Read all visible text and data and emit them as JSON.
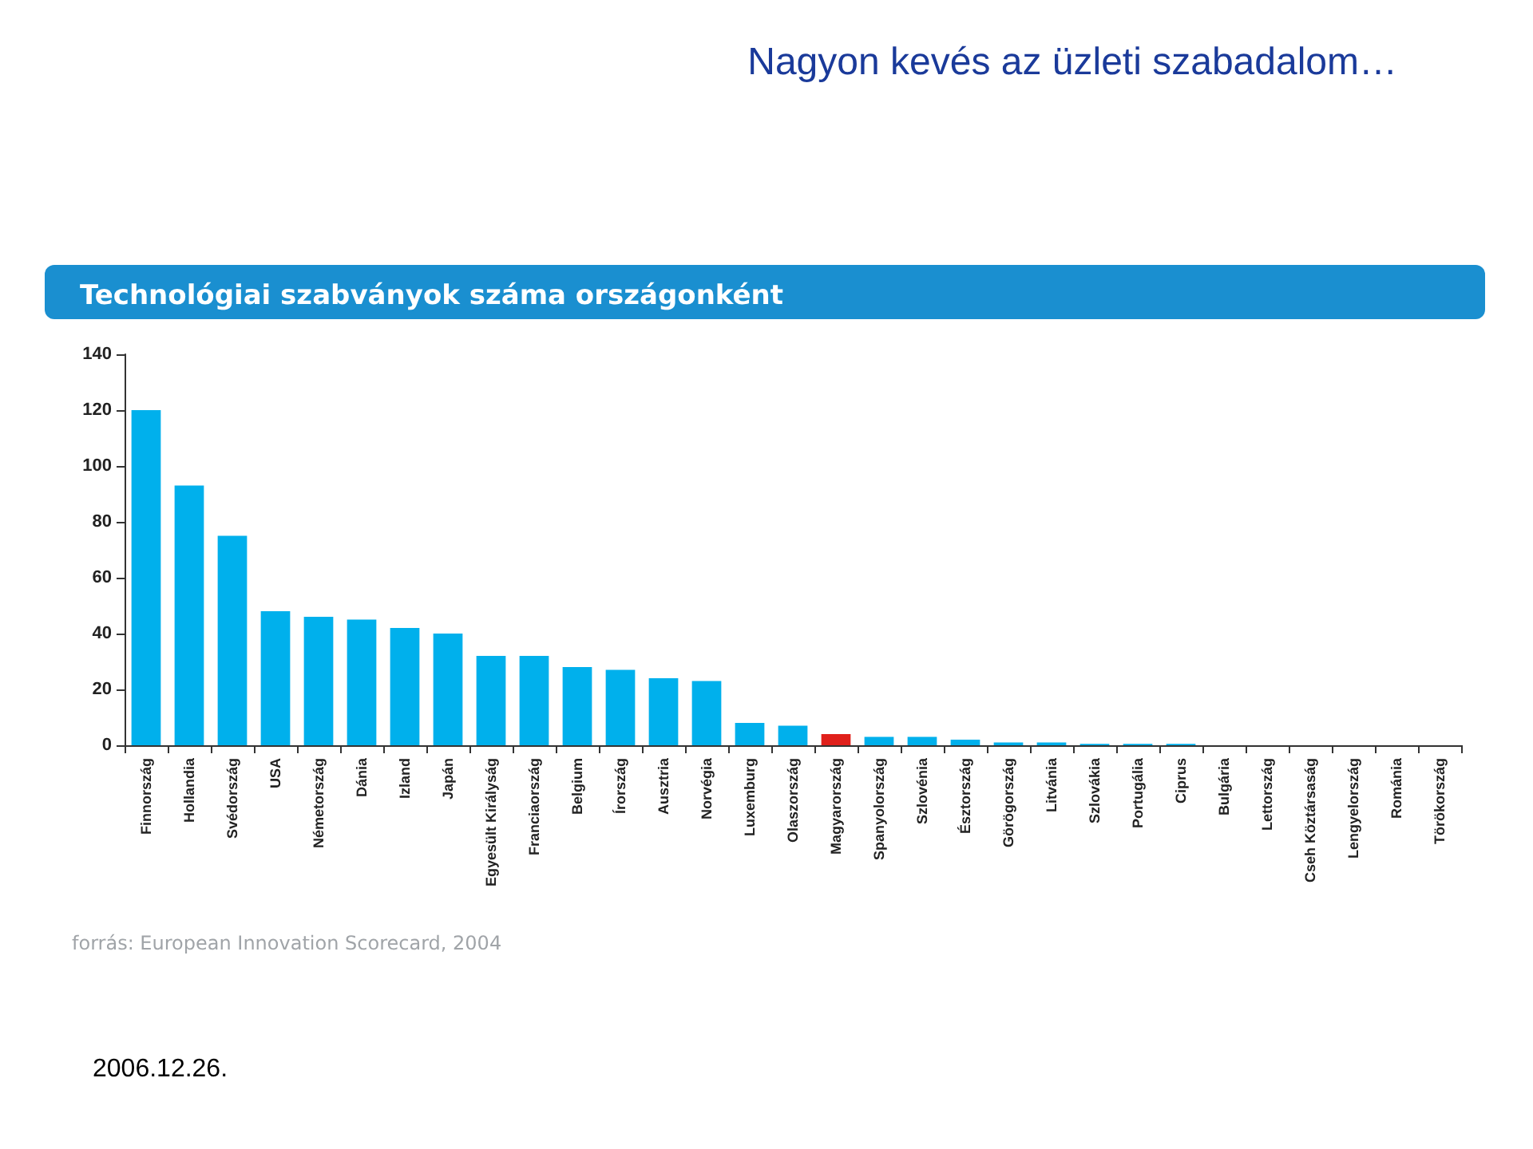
{
  "chart_data": {
    "type": "bar",
    "title": "Nagyon kevés az üzleti szabadalom…",
    "subtitle": "Technológiai szabványok száma országonként",
    "categories": [
      "Finnország",
      "Hollandia",
      "Svédország",
      "USA",
      "Németország",
      "Dánia",
      "Izland",
      "Japán",
      "Egyesült Királyság",
      "Franciaország",
      "Belgium",
      "Írország",
      "Ausztria",
      "Norvégia",
      "Luxemburg",
      "Olaszország",
      "Magyarország",
      "Spanyolország",
      "Szlovénia",
      "Észtország",
      "Görögország",
      "Litvánia",
      "Szlovákia",
      "Portugália",
      "Ciprus",
      "Bulgária",
      "Lettország",
      "Cseh Köztársaság",
      "Lengyelország",
      "Románia",
      "Törökország"
    ],
    "values": [
      120,
      93,
      75,
      48,
      46,
      45,
      42,
      40,
      32,
      32,
      28,
      27,
      24,
      23,
      8,
      7,
      4,
      3,
      3,
      2,
      1,
      1,
      0.5,
      0.5,
      0.5,
      0,
      0,
      0,
      0,
      0,
      0
    ],
    "colors": [
      "#00b0ec",
      "#00b0ec",
      "#00b0ec",
      "#00b0ec",
      "#00b0ec",
      "#00b0ec",
      "#00b0ec",
      "#00b0ec",
      "#00b0ec",
      "#00b0ec",
      "#00b0ec",
      "#00b0ec",
      "#00b0ec",
      "#00b0ec",
      "#00b0ec",
      "#00b0ec",
      "#e0201b",
      "#00b0ec",
      "#00b0ec",
      "#00b0ec",
      "#00b0ec",
      "#00b0ec",
      "#00b0ec",
      "#00b0ec",
      "#00b0ec",
      "#00b0ec",
      "#00b0ec",
      "#00b0ec",
      "#00b0ec",
      "#00b0ec",
      "#00b0ec"
    ],
    "ylim": [
      0,
      140
    ],
    "yticks": [
      0,
      20,
      40,
      60,
      80,
      100,
      120,
      140
    ],
    "grid": false,
    "annotations": [
      "forrás: European Innovation Scorecard, 2004",
      "2006.12.26."
    ]
  }
}
